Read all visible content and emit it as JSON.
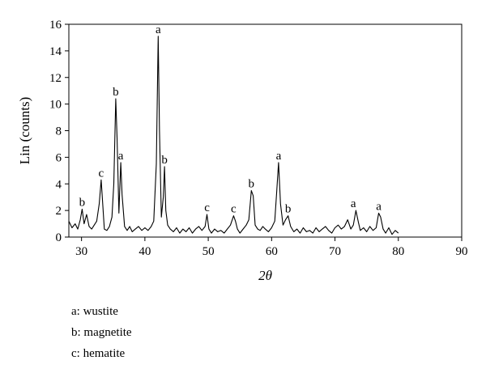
{
  "chart_data": {
    "type": "line",
    "xlabel": "2θ",
    "ylabel": "Lin (counts)",
    "xlim": [
      28,
      90
    ],
    "ylim": [
      0,
      16
    ],
    "x_ticks": [
      30,
      40,
      50,
      60,
      70,
      80,
      90
    ],
    "y_ticks": [
      0,
      2,
      4,
      6,
      8,
      10,
      12,
      14,
      16
    ],
    "grid": false,
    "series": [
      {
        "x": [
          28,
          28.5,
          29,
          29.4,
          29.8,
          30.1,
          30.4,
          30.8,
          31.2,
          31.6,
          32,
          32.4,
          32.8,
          33.1,
          33.3,
          33.6,
          34,
          34.4,
          34.8,
          35.1,
          35.4,
          35.6,
          35.9,
          36.2,
          36.4,
          36.8,
          37.2,
          37.6,
          38,
          38.5,
          39,
          39.5,
          40,
          40.5,
          41,
          41.4,
          41.8,
          42.1,
          42.3,
          42.6,
          42.9,
          43.1,
          43.3,
          43.6,
          44,
          44.5,
          45,
          45.5,
          46,
          46.5,
          47,
          47.5,
          48,
          48.5,
          49,
          49.5,
          49.8,
          50.1,
          50.5,
          51,
          51.5,
          52,
          52.5,
          53,
          53.5,
          54,
          54.3,
          54.6,
          55,
          55.5,
          56,
          56.4,
          56.8,
          57.1,
          57.4,
          57.8,
          58.2,
          58.6,
          59,
          59.5,
          60,
          60.5,
          60.8,
          61.1,
          61.4,
          61.8,
          62.2,
          62.6,
          63,
          63.5,
          64,
          64.5,
          65,
          65.5,
          66,
          66.5,
          67,
          67.5,
          68,
          68.5,
          69,
          69.5,
          70,
          70.5,
          71,
          71.5,
          72,
          72.5,
          72.9,
          73.3,
          73.7,
          74,
          74.5,
          75,
          75.5,
          76,
          76.5,
          76.9,
          77.2,
          77.6,
          78,
          78.5,
          79,
          79.5,
          80
        ],
        "y": [
          1.2,
          0.7,
          1.0,
          0.6,
          1.3,
          2.1,
          1.0,
          1.7,
          0.8,
          0.6,
          0.9,
          1.2,
          2.5,
          4.3,
          2.8,
          0.6,
          0.5,
          0.8,
          1.5,
          4.0,
          10.4,
          7.5,
          1.8,
          5.6,
          3.2,
          0.8,
          0.5,
          0.8,
          0.4,
          0.6,
          0.8,
          0.5,
          0.7,
          0.5,
          0.8,
          1.2,
          5.5,
          15.1,
          8.0,
          1.5,
          3.0,
          5.3,
          2.0,
          0.9,
          0.6,
          0.4,
          0.7,
          0.3,
          0.6,
          0.4,
          0.7,
          0.3,
          0.6,
          0.8,
          0.5,
          0.8,
          1.7,
          0.6,
          0.3,
          0.6,
          0.4,
          0.5,
          0.3,
          0.6,
          0.9,
          1.6,
          1.2,
          0.6,
          0.3,
          0.6,
          0.9,
          1.3,
          3.5,
          3.1,
          0.9,
          0.6,
          0.5,
          0.8,
          0.6,
          0.4,
          0.7,
          1.2,
          3.4,
          5.6,
          2.5,
          0.9,
          1.3,
          1.6,
          0.8,
          0.4,
          0.6,
          0.3,
          0.7,
          0.4,
          0.5,
          0.3,
          0.7,
          0.4,
          0.6,
          0.8,
          0.5,
          0.3,
          0.7,
          0.9,
          0.6,
          0.8,
          1.3,
          0.6,
          0.9,
          2.0,
          1.1,
          0.5,
          0.7,
          0.4,
          0.8,
          0.5,
          0.7,
          1.8,
          1.5,
          0.6,
          0.3,
          0.7,
          0.2,
          0.5,
          0.3
        ],
        "color": "#000000"
      }
    ],
    "annotations": [
      {
        "text": "a",
        "x": 42.1,
        "y": 15.1
      },
      {
        "text": "b",
        "x": 35.4,
        "y": 10.4
      },
      {
        "text": "a",
        "x": 36.2,
        "y": 5.6
      },
      {
        "text": "c",
        "x": 33.1,
        "y": 4.3
      },
      {
        "text": "b",
        "x": 43.1,
        "y": 5.3
      },
      {
        "text": "b",
        "x": 30.1,
        "y": 2.1
      },
      {
        "text": "c",
        "x": 49.8,
        "y": 1.7
      },
      {
        "text": "c",
        "x": 54.0,
        "y": 1.6
      },
      {
        "text": "b",
        "x": 56.8,
        "y": 3.5
      },
      {
        "text": "a",
        "x": 61.1,
        "y": 5.6
      },
      {
        "text": "b",
        "x": 62.6,
        "y": 1.6
      },
      {
        "text": "a",
        "x": 72.9,
        "y": 2.0
      },
      {
        "text": "a",
        "x": 76.9,
        "y": 1.8
      }
    ]
  },
  "legend": [
    "a: wustite",
    "b: magnetite",
    "c: hematite"
  ]
}
